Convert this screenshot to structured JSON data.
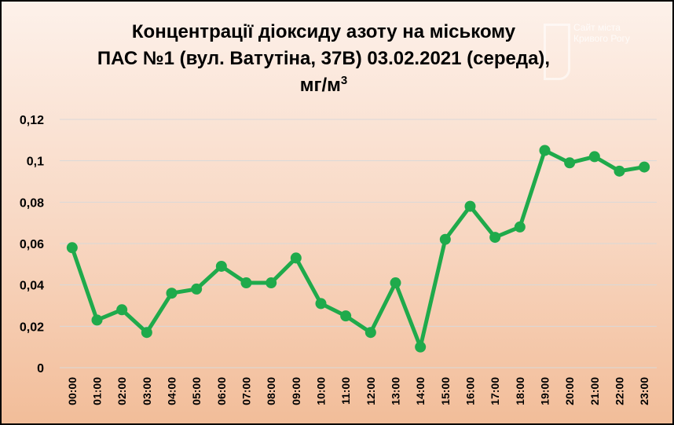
{
  "chart_data": {
    "type": "line",
    "title_line1": "Концентрації діоксиду азоту на міському",
    "title_line2": "ПАС №1 (вул. Ватутіна, 37В) 03.02.2021 (середа),",
    "title_unit_base": "мг/м",
    "title_unit_sup": "3",
    "categories": [
      "00:00",
      "01:00",
      "02:00",
      "03:00",
      "04:00",
      "05:00",
      "06:00",
      "07:00",
      "08:00",
      "09:00",
      "10:00",
      "11:00",
      "12:00",
      "13:00",
      "14:00",
      "15:00",
      "16:00",
      "17:00",
      "18:00",
      "19:00",
      "20:00",
      "21:00",
      "22:00",
      "23:00"
    ],
    "values": [
      0.058,
      0.023,
      0.028,
      0.017,
      0.036,
      0.038,
      0.049,
      0.041,
      0.041,
      0.053,
      0.031,
      0.025,
      0.017,
      0.041,
      0.01,
      0.062,
      0.078,
      0.063,
      0.068,
      0.105,
      0.099,
      0.102,
      0.095,
      0.097
    ],
    "y_ticks": [
      0,
      0.02,
      0.04,
      0.06,
      0.08,
      0.1,
      0.12
    ],
    "y_tick_labels": [
      "0",
      "0,02",
      "0,04",
      "0,06",
      "0,08",
      "0,1",
      "0,12"
    ],
    "ylim": [
      0,
      0.12
    ],
    "grid": true,
    "legend": "none",
    "line_color": "#1faa4b"
  },
  "watermark": {
    "line1": "Сайт міста",
    "line2": "Кривого Рогу"
  }
}
